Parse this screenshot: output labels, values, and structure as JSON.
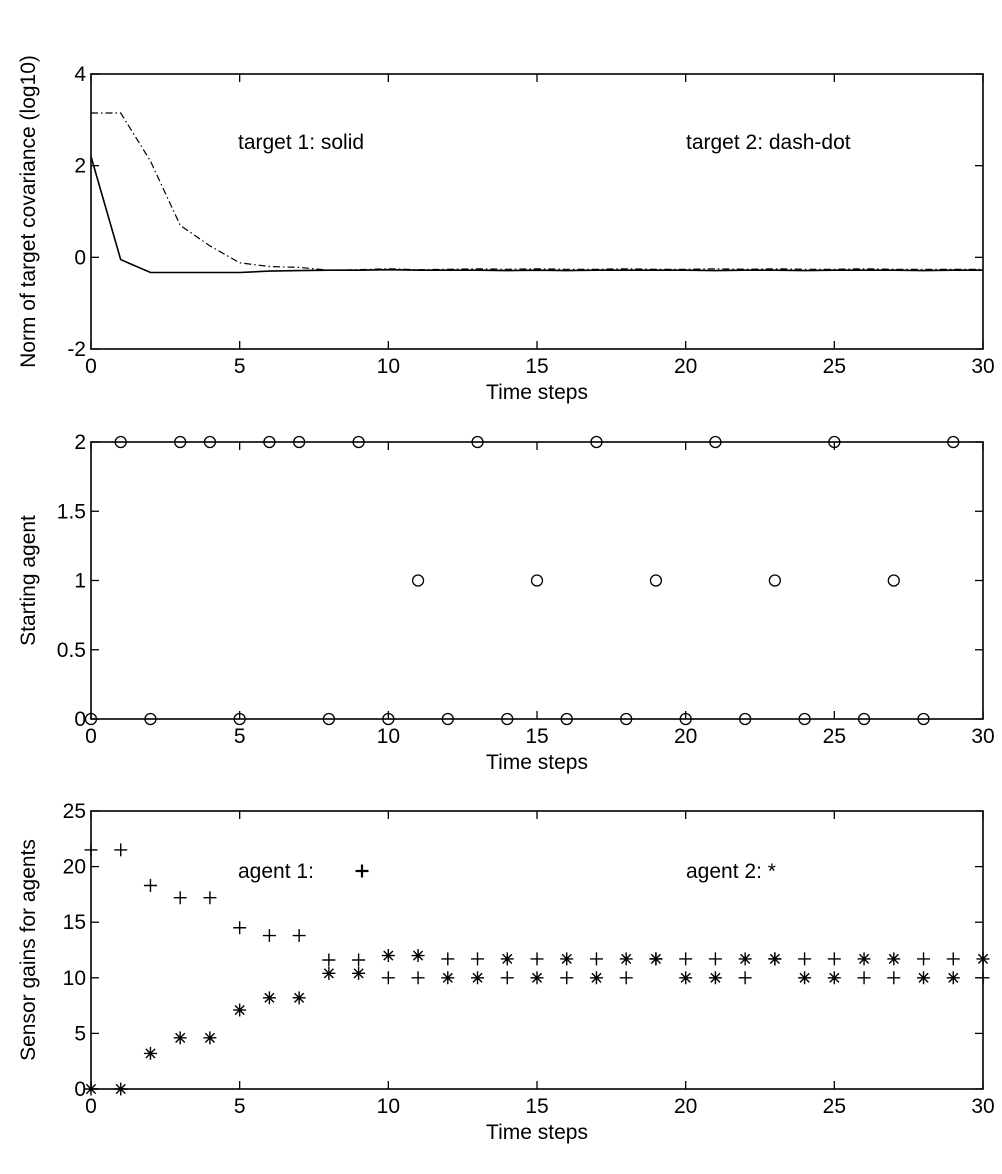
{
  "chart_data": [
    {
      "type": "line",
      "xlabel": "Time steps",
      "ylabel": "Norm of target covariance (log10)",
      "xlim": [
        0,
        30
      ],
      "ylim": [
        -2,
        4
      ],
      "xticks": [
        0,
        5,
        10,
        15,
        20,
        25,
        30
      ],
      "yticks": [
        -2,
        0,
        2,
        4
      ],
      "xtick_labels": [
        "0",
        "5",
        "10",
        "15",
        "20",
        "25",
        "30"
      ],
      "ytick_labels": [
        "-2",
        "0",
        "2",
        "4"
      ],
      "grid": false,
      "annotations": [
        "target 1:   solid",
        "target 2:  dash-dot"
      ],
      "series": [
        {
          "style": "solid",
          "x": [
            0,
            1,
            2,
            3,
            4,
            5,
            6,
            7,
            8,
            9,
            10,
            11,
            12,
            13,
            14,
            15,
            16,
            17,
            18,
            19,
            20,
            21,
            22,
            23,
            24,
            25,
            26,
            27,
            28,
            29,
            30
          ],
          "values": [
            2.2,
            -0.05,
            -0.33,
            -0.33,
            -0.33,
            -0.33,
            -0.3,
            -0.29,
            -0.28,
            -0.28,
            -0.27,
            -0.28,
            -0.28,
            -0.28,
            -0.29,
            -0.28,
            -0.29,
            -0.28,
            -0.28,
            -0.28,
            -0.28,
            -0.29,
            -0.28,
            -0.28,
            -0.29,
            -0.28,
            -0.28,
            -0.28,
            -0.29,
            -0.28,
            -0.28
          ]
        },
        {
          "style": "dash-dot",
          "x": [
            0,
            1,
            2,
            3,
            4,
            5,
            6,
            7,
            8,
            9,
            10,
            11,
            12,
            13,
            14,
            15,
            16,
            17,
            18,
            19,
            20,
            21,
            22,
            23,
            24,
            25,
            26,
            27,
            28,
            29,
            30
          ],
          "values": [
            3.15,
            3.15,
            2.1,
            0.7,
            0.25,
            -0.12,
            -0.2,
            -0.22,
            -0.28,
            -0.27,
            -0.25,
            -0.27,
            -0.26,
            -0.25,
            -0.26,
            -0.25,
            -0.26,
            -0.26,
            -0.25,
            -0.26,
            -0.26,
            -0.25,
            -0.26,
            -0.25,
            -0.26,
            -0.26,
            -0.25,
            -0.26,
            -0.26,
            -0.26,
            -0.26
          ]
        }
      ]
    },
    {
      "type": "scatter",
      "xlabel": "Time steps",
      "ylabel": "Starting agent",
      "xlim": [
        0,
        30
      ],
      "ylim": [
        0,
        2
      ],
      "xticks": [
        0,
        5,
        10,
        15,
        20,
        25,
        30
      ],
      "yticks": [
        0,
        0.5,
        1,
        1.5,
        2
      ],
      "xtick_labels": [
        "0",
        "5",
        "10",
        "15",
        "20",
        "25",
        "30"
      ],
      "ytick_labels": [
        "0",
        "0.5",
        "1",
        "1.5",
        "2"
      ],
      "grid": false,
      "marker": "circle",
      "series": [
        {
          "marker": "circle",
          "x": [
            1,
            3,
            4,
            6,
            7,
            9,
            13,
            17,
            21,
            25,
            29,
            11,
            15,
            19,
            23,
            27,
            0,
            2,
            5,
            8,
            10,
            12,
            14,
            16,
            18,
            20,
            22,
            24,
            26,
            28
          ],
          "values": [
            2,
            2,
            2,
            2,
            2,
            2,
            2,
            2,
            2,
            2,
            2,
            1,
            1,
            1,
            1,
            1,
            0,
            0,
            0,
            0,
            0,
            0,
            0,
            0,
            0,
            0,
            0,
            0,
            0,
            0
          ]
        }
      ]
    },
    {
      "type": "scatter",
      "xlabel": "Time steps",
      "ylabel": "Sensor gains for agents",
      "xlim": [
        0,
        30
      ],
      "ylim": [
        0,
        25
      ],
      "xticks": [
        0,
        5,
        10,
        15,
        20,
        25,
        30
      ],
      "yticks": [
        0,
        5,
        10,
        15,
        20,
        25
      ],
      "xtick_labels": [
        "0",
        "5",
        "10",
        "15",
        "20",
        "25",
        "30"
      ],
      "ytick_labels": [
        "0",
        "5",
        "10",
        "15",
        "20",
        "25"
      ],
      "grid": false,
      "annotations": [
        "agent 1:",
        "agent 2:  *"
      ],
      "series": [
        {
          "marker": "plus",
          "x": [
            0,
            1,
            2,
            3,
            4,
            5,
            6,
            7,
            8,
            9,
            10,
            11,
            12,
            13,
            14,
            15,
            16,
            17,
            18,
            19,
            20,
            21,
            22,
            23,
            24,
            25,
            26,
            27,
            28,
            29,
            30
          ],
          "values": [
            21.5,
            21.5,
            18.3,
            17.2,
            17.2,
            14.5,
            13.8,
            13.8,
            11.6,
            11.6,
            10,
            10,
            11.7,
            11.7,
            10,
            11.7,
            10,
            11.7,
            10,
            11.7,
            11.7,
            11.7,
            10,
            11.7,
            11.7,
            11.7,
            10,
            10,
            11.7,
            11.7,
            10
          ]
        },
        {
          "marker": "asterisk",
          "x": [
            0,
            1,
            2,
            3,
            4,
            5,
            6,
            7,
            8,
            9,
            10,
            11,
            12,
            13,
            14,
            15,
            16,
            17,
            18,
            19,
            20,
            21,
            22,
            23,
            24,
            25,
            26,
            27,
            28,
            29,
            30
          ],
          "values": [
            0,
            0,
            3.2,
            4.6,
            4.6,
            7.1,
            8.2,
            8.2,
            10.4,
            10.4,
            12,
            12,
            10,
            10,
            11.7,
            10,
            11.7,
            10,
            11.7,
            11.7,
            10,
            10,
            11.7,
            11.7,
            10,
            10,
            11.7,
            11.7,
            10,
            10,
            11.7
          ]
        }
      ]
    }
  ]
}
